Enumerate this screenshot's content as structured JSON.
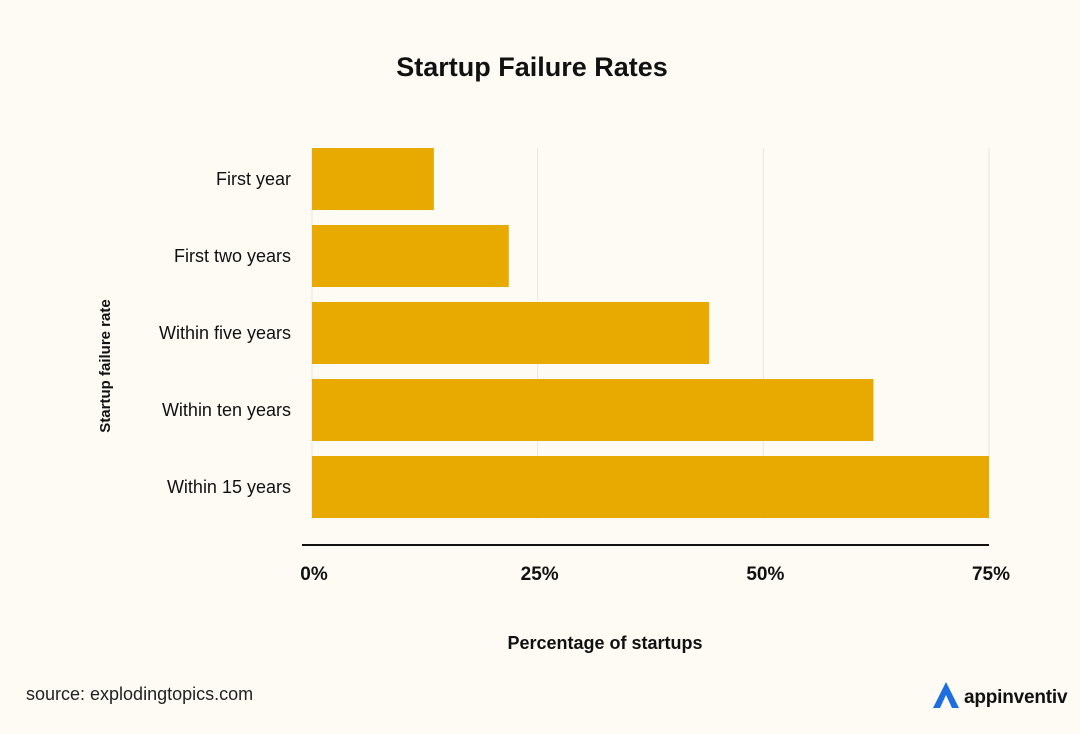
{
  "chart_data": {
    "type": "bar",
    "orientation": "horizontal",
    "title": "Startup Failure Rates",
    "xlabel": "Percentage of startups",
    "ylabel": "Startup failure rate",
    "categories": [
      "First year",
      "First two years",
      "Within five years",
      "Within ten years",
      "Within 15 years"
    ],
    "values": [
      13.5,
      21.8,
      44,
      62.2,
      75
    ],
    "x_ticks": [
      "0%",
      "25%",
      "50%",
      "75%"
    ],
    "x_tick_values": [
      0,
      25,
      50,
      75
    ],
    "xlim": [
      0,
      75
    ],
    "grid": "vertical",
    "bar_color": "#e8a900"
  },
  "footer": {
    "source": "source: explodingtopics.com",
    "brand": "appinventiv",
    "brand_icon": "appinventiv-logo-icon",
    "brand_color": "#1d6fe0"
  }
}
